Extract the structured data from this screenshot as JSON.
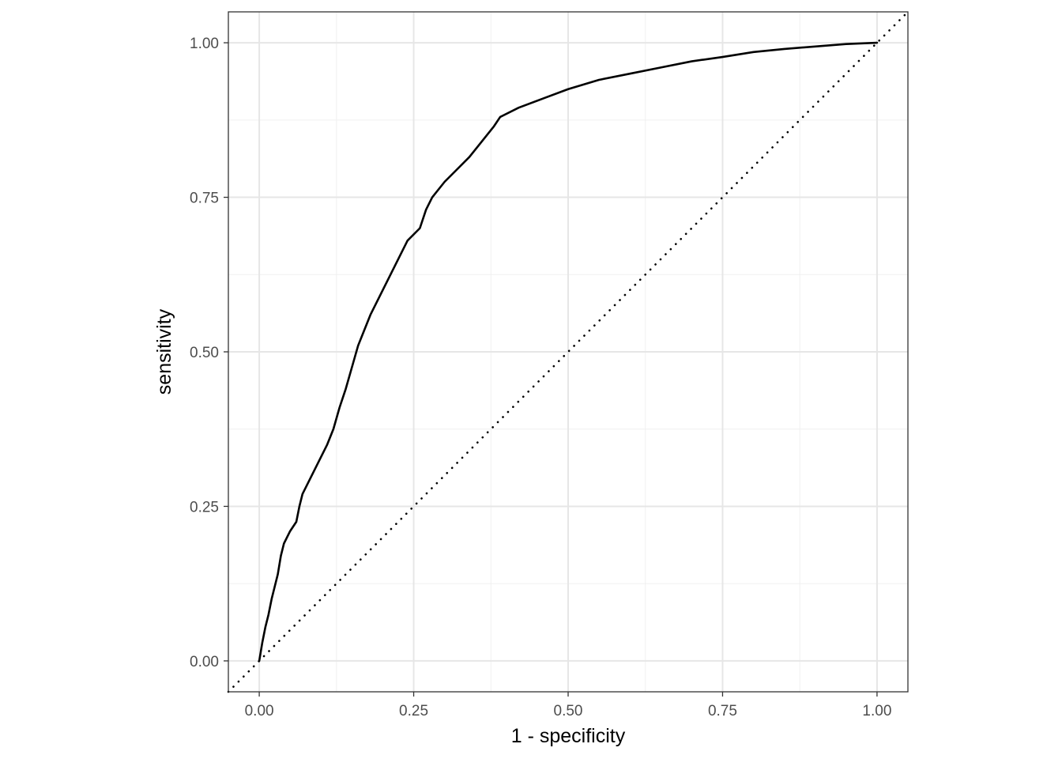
{
  "chart_data": {
    "type": "line",
    "title": "",
    "xlabel": "1 - specificity",
    "ylabel": "sensitivity",
    "xlim": [
      -0.05,
      1.05
    ],
    "ylim": [
      -0.05,
      1.05
    ],
    "x_ticks": [
      0,
      0.25,
      0.5,
      0.75,
      1
    ],
    "x_tick_labels": [
      "0.00",
      "0.25",
      "0.50",
      "0.75",
      "1.00"
    ],
    "y_ticks": [
      0,
      0.25,
      0.5,
      0.75,
      1
    ],
    "y_tick_labels": [
      "0.00",
      "0.25",
      "0.50",
      "0.75",
      "1.00"
    ],
    "grid": true,
    "legend": "none",
    "aspect": "equal",
    "series": [
      {
        "style": "solid",
        "color": "#000000",
        "points": [
          [
            0,
            0
          ],
          [
            0.005,
            0.03
          ],
          [
            0.01,
            0.055
          ],
          [
            0.015,
            0.075
          ],
          [
            0.02,
            0.1
          ],
          [
            0.025,
            0.12
          ],
          [
            0.03,
            0.14
          ],
          [
            0.035,
            0.17
          ],
          [
            0.04,
            0.19
          ],
          [
            0.05,
            0.21
          ],
          [
            0.06,
            0.225
          ],
          [
            0.065,
            0.25
          ],
          [
            0.07,
            0.27
          ],
          [
            0.08,
            0.29
          ],
          [
            0.09,
            0.31
          ],
          [
            0.1,
            0.33
          ],
          [
            0.11,
            0.35
          ],
          [
            0.12,
            0.375
          ],
          [
            0.13,
            0.41
          ],
          [
            0.14,
            0.44
          ],
          [
            0.15,
            0.475
          ],
          [
            0.16,
            0.51
          ],
          [
            0.17,
            0.535
          ],
          [
            0.18,
            0.56
          ],
          [
            0.19,
            0.58
          ],
          [
            0.2,
            0.6
          ],
          [
            0.22,
            0.64
          ],
          [
            0.24,
            0.68
          ],
          [
            0.26,
            0.7
          ],
          [
            0.27,
            0.73
          ],
          [
            0.28,
            0.75
          ],
          [
            0.3,
            0.775
          ],
          [
            0.32,
            0.795
          ],
          [
            0.34,
            0.815
          ],
          [
            0.36,
            0.84
          ],
          [
            0.38,
            0.865
          ],
          [
            0.39,
            0.88
          ],
          [
            0.42,
            0.895
          ],
          [
            0.46,
            0.91
          ],
          [
            0.5,
            0.925
          ],
          [
            0.55,
            0.94
          ],
          [
            0.6,
            0.95
          ],
          [
            0.65,
            0.96
          ],
          [
            0.7,
            0.97
          ],
          [
            0.75,
            0.977
          ],
          [
            0.8,
            0.985
          ],
          [
            0.85,
            0.99
          ],
          [
            0.9,
            0.994
          ],
          [
            0.95,
            0.998
          ],
          [
            1,
            1
          ]
        ]
      },
      {
        "style": "dotted",
        "color": "#000000",
        "points": [
          [
            -0.05,
            -0.05
          ],
          [
            1.05,
            1.05
          ]
        ]
      }
    ]
  }
}
